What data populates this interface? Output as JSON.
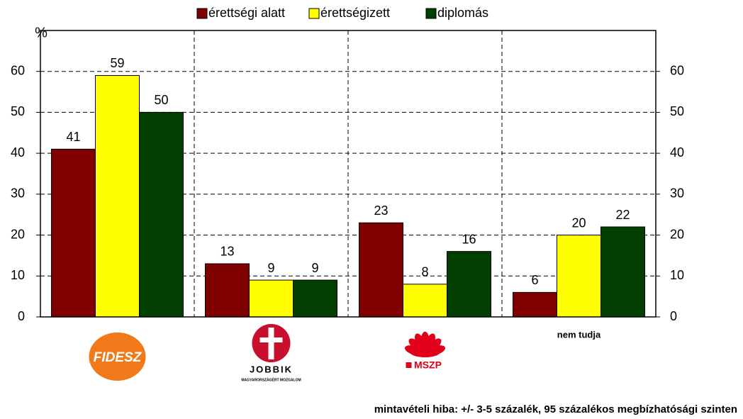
{
  "chart_data": {
    "type": "bar",
    "unit_label": "%",
    "categories": [
      "FIDESZ",
      "JOBBIK",
      "MSZP",
      "nem tudja"
    ],
    "logo_subtitle": "MAGYARORSZÁGÉRT MOZGALOM",
    "series": [
      {
        "name": "érettségi alatt",
        "color": "#800000",
        "values": [
          41,
          13,
          23,
          6
        ]
      },
      {
        "name": "érettségizett",
        "color": "#ffff00",
        "values": [
          59,
          9,
          8,
          20
        ]
      },
      {
        "name": "diplomás",
        "color": "#003f00",
        "values": [
          50,
          9,
          16,
          22
        ]
      }
    ],
    "ylim": [
      0,
      70
    ],
    "yticks": [
      0,
      10,
      20,
      30,
      40,
      50,
      60
    ],
    "y2lim": [
      0,
      70
    ],
    "y2ticks": [
      0,
      10,
      20,
      30,
      40,
      50,
      60
    ],
    "grid": true,
    "note": "mintavételi hiba: +/- 3-5 százalék, 95 százalékos megbízhatósági szinten"
  }
}
